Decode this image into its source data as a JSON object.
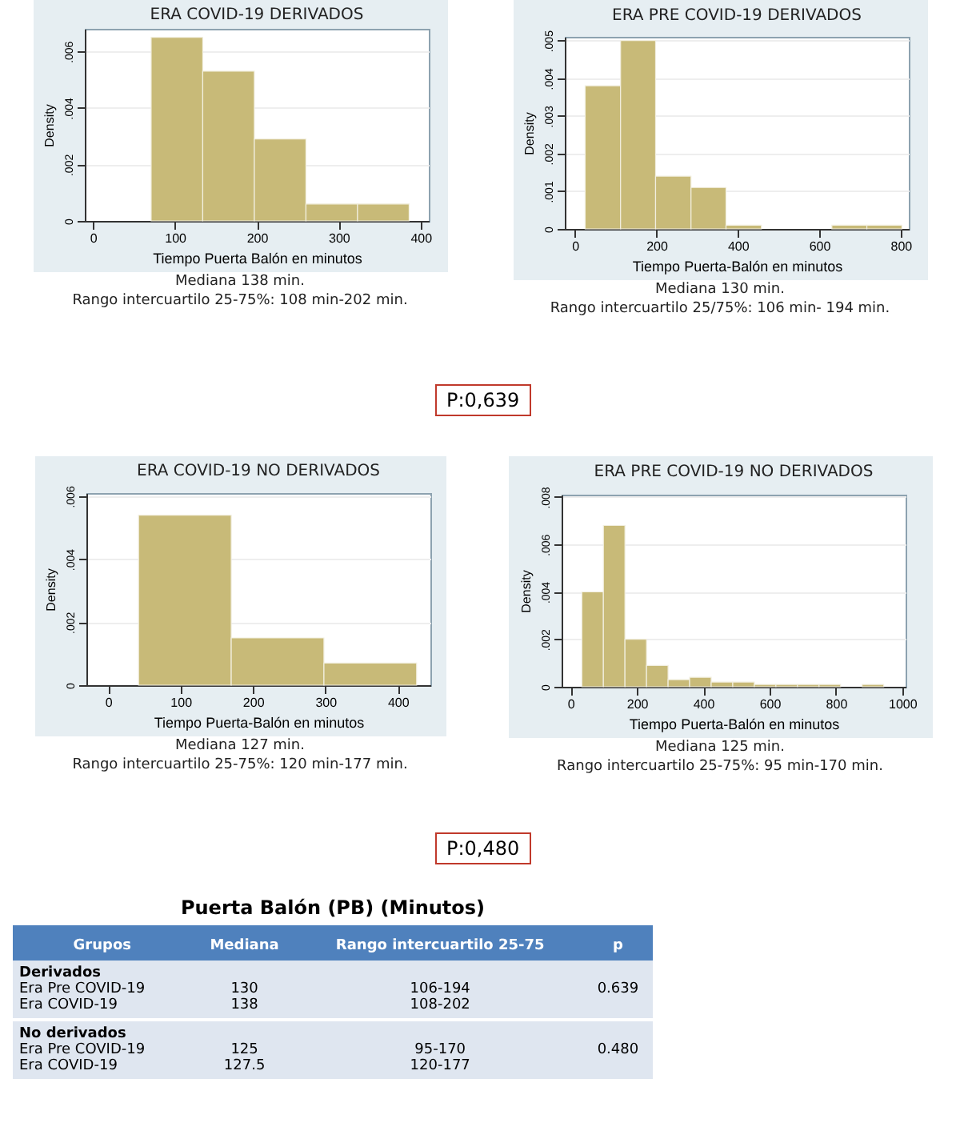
{
  "chart_data": [
    {
      "type": "histogram",
      "title": "ERA COVID-19 DERIVADOS",
      "xlabel": "Tiempo Puerta Balón en minutos",
      "ylabel": "Density",
      "color": "#c8ba78",
      "grid": "y",
      "bins": [
        71,
        134,
        197,
        260,
        323,
        386
      ],
      "values": [
        0.0065,
        0.0053,
        0.0029,
        0.0006,
        0.0006
      ],
      "xlim": [
        -10,
        410
      ],
      "xticks": [
        0,
        100,
        200,
        300,
        400
      ],
      "ylim": [
        0,
        0.0068
      ],
      "yticks": [
        {
          "value": 0,
          "label": "0"
        },
        {
          "value": 0.002,
          "label": ".002"
        },
        {
          "value": 0.004,
          "label": ".004"
        },
        {
          "value": 0.006,
          "label": ".006"
        }
      ],
      "annotations": [
        "Mediana 138 min.",
        "Rango intercuartilo 25-75%: 108 min-202 min.",
        "P:0,639"
      ]
    },
    {
      "type": "histogram",
      "title": "ERA PRE COVID-19 DERIVADOS",
      "xlabel": "Tiempo Puerta-Balón en minutos",
      "ylabel": "Density",
      "color": "#c8ba78",
      "grid": "y",
      "bins": [
        25,
        112,
        198,
        285,
        371,
        458,
        631,
        717,
        803
      ],
      "values": [
        0.0038,
        0.005,
        0.0014,
        0.0011,
        0.0001,
        0,
        0.0001,
        0.0001
      ],
      "xlim": [
        -25,
        820
      ],
      "xticks": [
        0,
        200,
        400,
        600,
        800
      ],
      "ylim": [
        0,
        0.0051
      ],
      "yticks": [
        {
          "value": 0,
          "label": "0"
        },
        {
          "value": 0.001,
          "label": ".001"
        },
        {
          "value": 0.002,
          "label": ".002"
        },
        {
          "value": 0.003,
          "label": ".003"
        },
        {
          "value": 0.004,
          "label": ".004"
        },
        {
          "value": 0.005,
          "label": ".005"
        }
      ],
      "annotations": [
        "Mediana 130 min.",
        "Rango intercuartilo 25/75%: 106 min- 194 min."
      ]
    },
    {
      "type": "histogram",
      "title": "ERA COVID-19 NO DERIVADOS",
      "xlabel": "Tiempo Puerta-Balón en minutos",
      "ylabel": "Density",
      "color": "#c8ba78",
      "grid": "y",
      "bins": [
        42,
        170,
        298,
        426
      ],
      "values": [
        0.0054,
        0.0015,
        0.0007
      ],
      "xlim": [
        -30,
        445
      ],
      "xticks": [
        0,
        100,
        200,
        300,
        400
      ],
      "ylim": [
        0,
        0.0061
      ],
      "yticks": [
        {
          "value": 0,
          "label": "0"
        },
        {
          "value": 0.002,
          "label": ".002"
        },
        {
          "value": 0.004,
          "label": ".004"
        },
        {
          "value": 0.006,
          "label": ".006"
        }
      ],
      "annotations": [
        "Mediana 127 min.",
        "Rango intercuartilo 25-75%: 120 min-177 min.",
        "P:0,480"
      ]
    },
    {
      "type": "histogram",
      "title": "ERA PRE COVID-19 NO DERIVADOS",
      "xlabel": "Tiempo Puerta-Balón en minutos",
      "ylabel": "Density",
      "color": "#c8ba78",
      "grid": "y",
      "bins": [
        34,
        99,
        164,
        229,
        294,
        359,
        424,
        489,
        554,
        619,
        684,
        749,
        814,
        879,
        944
      ],
      "values": [
        0.004,
        0.0068,
        0.002,
        0.0009,
        0.0003,
        0.0004,
        0.0002,
        0.0002,
        0.0001,
        0.0001,
        0.0001,
        0.0001,
        0,
        0.0001
      ],
      "xlim": [
        -27,
        1010
      ],
      "xticks": [
        0,
        200,
        400,
        600,
        800,
        1000
      ],
      "ylim": [
        0,
        0.0081
      ],
      "yticks": [
        {
          "value": 0,
          "label": "0"
        },
        {
          "value": 0.002,
          "label": ".002"
        },
        {
          "value": 0.004,
          "label": ".004"
        },
        {
          "value": 0.006,
          "label": ".006"
        },
        {
          "value": 0.008,
          "label": ".008"
        }
      ],
      "annotations": [
        "Mediana 125 min.",
        "Rango intercuartilo 25-75%: 95 min-170 min."
      ]
    },
    {
      "type": "other",
      "title": "Puerta Balón (PB) (Minutos)",
      "categories": [
        "Grupos",
        "Mediana",
        "Rango intercuartilo 25-75",
        "p"
      ],
      "annotations": [
        "Derivados\nEra Pre COVID-19\nEra COVID-19",
        "\n130\n138",
        "\n106-194\n108-202",
        "0.639",
        "No derivados\nEra Pre COVID-19\nEra COVID-19",
        "\n125\n127.5",
        "\n95-170\n120-177",
        "0.480"
      ]
    }
  ]
}
